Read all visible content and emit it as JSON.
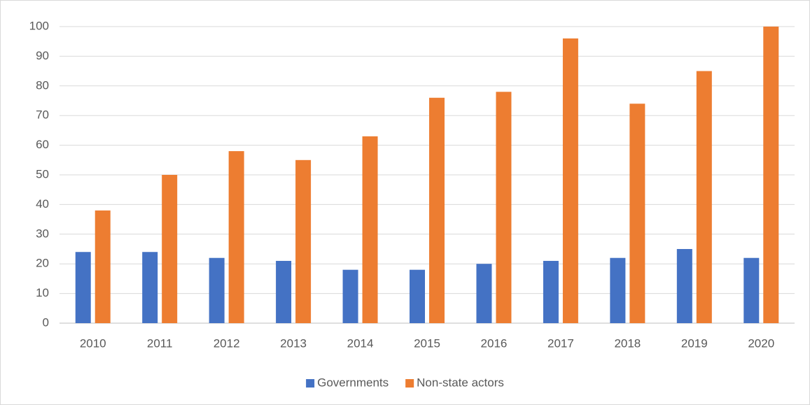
{
  "chart_data": {
    "type": "bar",
    "categories": [
      "2010",
      "2011",
      "2012",
      "2013",
      "2014",
      "2015",
      "2016",
      "2017",
      "2018",
      "2019",
      "2020"
    ],
    "series": [
      {
        "name": "Governments",
        "color": "#4472c4",
        "values": [
          24,
          24,
          22,
          21,
          18,
          18,
          20,
          21,
          22,
          25,
          22
        ]
      },
      {
        "name": "Non-state actors",
        "color": "#ed7d31",
        "values": [
          38,
          50,
          58,
          55,
          63,
          76,
          78,
          96,
          74,
          85,
          100
        ]
      }
    ],
    "ylim": [
      0,
      100
    ],
    "yticks": [
      0,
      10,
      20,
      30,
      40,
      50,
      60,
      70,
      80,
      90,
      100
    ],
    "grid": true,
    "legend": "bottom"
  }
}
